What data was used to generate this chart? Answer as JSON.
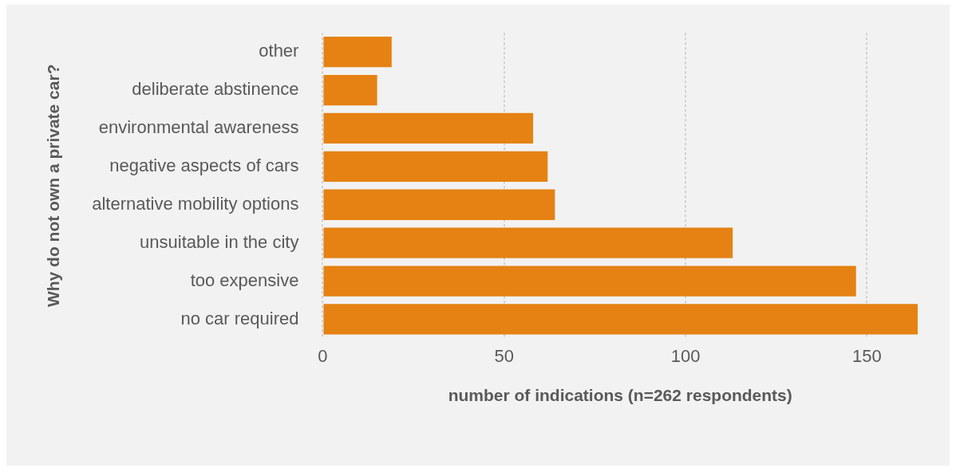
{
  "chart_data": {
    "type": "bar",
    "orientation": "horizontal",
    "xlabel": "number of indications (n=262 respondents)",
    "ylabel": "Why do not own a private car?",
    "categories": [
      "other",
      "deliberate abstinence",
      "environmental awareness",
      "negative aspects of cars",
      "alternative mobility options",
      "unsuitable in the city",
      "too expensive",
      "no car required"
    ],
    "values": [
      19,
      15,
      58,
      62,
      64,
      113,
      147,
      164
    ],
    "color": "#e58213",
    "xlim": [
      0,
      164
    ],
    "xticks": [
      0,
      50,
      100,
      150
    ],
    "grid": "x",
    "legend": false
  }
}
